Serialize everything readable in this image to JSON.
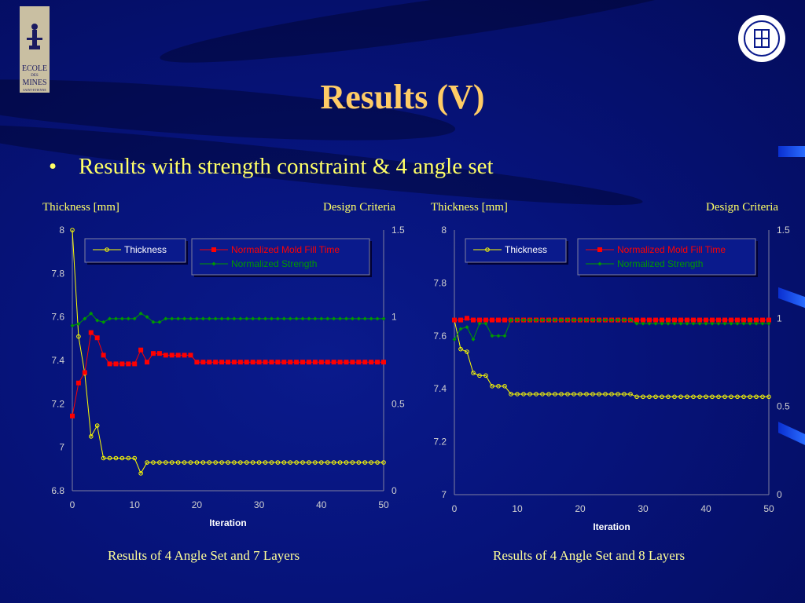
{
  "slide": {
    "title": "Results (V)",
    "bullet": "Results with strength constraint & 4 angle set",
    "logo_left": {
      "line1": "ECOLE",
      "line2": "DES",
      "line3": "MINES",
      "line4": "SAINT-ETIENNE"
    },
    "colors": {
      "title": "#ffcc66",
      "text": "#ffff66",
      "thickness": "#ffff00",
      "mold": "#ff0000",
      "strength": "#009900"
    }
  },
  "chart_data": [
    {
      "type": "line",
      "left_axis_header": "Thickness [mm]",
      "right_axis_header": "Design Criteria",
      "xlabel": "Iteration",
      "caption": "Results of 4 Angle Set and 7 Layers",
      "xlim": [
        0,
        50
      ],
      "ylim": [
        6.8,
        8
      ],
      "y2lim": [
        0,
        1.5
      ],
      "xticks": [
        0,
        10,
        20,
        30,
        40,
        50
      ],
      "yticks": [
        6.8,
        7,
        7.2,
        7.4,
        7.6,
        7.8,
        8
      ],
      "ytick_labels": [
        "6.8",
        "7",
        "7.2",
        "7.4",
        "7.6",
        "7.8",
        "8"
      ],
      "y2ticks": [
        0,
        0.5,
        1,
        1.5
      ],
      "y2tick_labels": [
        "0",
        "0.5",
        "1",
        "1.5"
      ],
      "legend": {
        "thickness": "Thickness",
        "mold": "Normalized Mold Fill Time",
        "strength": "Normalized Strength"
      },
      "series": [
        {
          "name": "Thickness",
          "axis": "left",
          "x": [
            0,
            1,
            2,
            3,
            4,
            5,
            6,
            7,
            8,
            9,
            10,
            11,
            12,
            13,
            14,
            15,
            16,
            17,
            18,
            19,
            20,
            21,
            22,
            23,
            24,
            25,
            26,
            27,
            28,
            29,
            30,
            31,
            32,
            33,
            34,
            35,
            36,
            37,
            38,
            39,
            40,
            41,
            42,
            43,
            44,
            45,
            46,
            47,
            48,
            49,
            50
          ],
          "values": [
            8.0,
            7.51,
            7.34,
            7.05,
            7.1,
            6.95,
            6.95,
            6.95,
            6.95,
            6.95,
            6.95,
            6.88,
            6.93,
            6.93,
            6.93,
            6.93,
            6.93,
            6.93,
            6.93,
            6.93,
            6.93,
            6.93,
            6.93,
            6.93,
            6.93,
            6.93,
            6.93,
            6.93,
            6.93,
            6.93,
            6.93,
            6.93,
            6.93,
            6.93,
            6.93,
            6.93,
            6.93,
            6.93,
            6.93,
            6.93,
            6.93,
            6.93,
            6.93,
            6.93,
            6.93,
            6.93,
            6.93,
            6.93,
            6.93,
            6.93,
            6.93
          ]
        },
        {
          "name": "Normalized Mold Fill Time",
          "axis": "right",
          "x": [
            0,
            1,
            2,
            3,
            4,
            5,
            6,
            7,
            8,
            9,
            10,
            11,
            12,
            13,
            14,
            15,
            16,
            17,
            18,
            19,
            20,
            21,
            22,
            23,
            24,
            25,
            26,
            27,
            28,
            29,
            30,
            31,
            32,
            33,
            34,
            35,
            36,
            37,
            38,
            39,
            40,
            41,
            42,
            43,
            44,
            45,
            46,
            47,
            48,
            49,
            50
          ],
          "values": [
            0.43,
            0.62,
            0.68,
            0.91,
            0.88,
            0.78,
            0.73,
            0.73,
            0.73,
            0.73,
            0.73,
            0.81,
            0.74,
            0.79,
            0.79,
            0.78,
            0.78,
            0.78,
            0.78,
            0.78,
            0.74,
            0.74,
            0.74,
            0.74,
            0.74,
            0.74,
            0.74,
            0.74,
            0.74,
            0.74,
            0.74,
            0.74,
            0.74,
            0.74,
            0.74,
            0.74,
            0.74,
            0.74,
            0.74,
            0.74,
            0.74,
            0.74,
            0.74,
            0.74,
            0.74,
            0.74,
            0.74,
            0.74,
            0.74,
            0.74,
            0.74
          ]
        },
        {
          "name": "Normalized Strength",
          "axis": "right",
          "x": [
            0,
            1,
            2,
            3,
            4,
            5,
            6,
            7,
            8,
            9,
            10,
            11,
            12,
            13,
            14,
            15,
            16,
            17,
            18,
            19,
            20,
            21,
            22,
            23,
            24,
            25,
            26,
            27,
            28,
            29,
            30,
            31,
            32,
            33,
            34,
            35,
            36,
            37,
            38,
            39,
            40,
            41,
            42,
            43,
            44,
            45,
            46,
            47,
            48,
            49,
            50
          ],
          "values": [
            0.95,
            0.96,
            0.99,
            1.02,
            0.98,
            0.97,
            0.99,
            0.99,
            0.99,
            0.99,
            0.99,
            1.02,
            1.0,
            0.97,
            0.97,
            0.99,
            0.99,
            0.99,
            0.99,
            0.99,
            0.99,
            0.99,
            0.99,
            0.99,
            0.99,
            0.99,
            0.99,
            0.99,
            0.99,
            0.99,
            0.99,
            0.99,
            0.99,
            0.99,
            0.99,
            0.99,
            0.99,
            0.99,
            0.99,
            0.99,
            0.99,
            0.99,
            0.99,
            0.99,
            0.99,
            0.99,
            0.99,
            0.99,
            0.99,
            0.99,
            0.99
          ]
        }
      ]
    },
    {
      "type": "line",
      "left_axis_header": "Thickness [mm]",
      "right_axis_header": "Design Criteria",
      "xlabel": "Iteration",
      "caption": "Results of 4 Angle Set and 8 Layers",
      "xlim": [
        0,
        50
      ],
      "ylim": [
        7,
        8
      ],
      "y2lim": [
        0,
        1.5
      ],
      "xticks": [
        0,
        10,
        20,
        30,
        40,
        50
      ],
      "yticks": [
        7,
        7.2,
        7.4,
        7.6,
        7.8,
        8
      ],
      "ytick_labels": [
        "7",
        "7.2",
        "7.4",
        "7.6",
        "7.8",
        "8"
      ],
      "y2ticks": [
        0,
        0.5,
        1,
        1.5
      ],
      "y2tick_labels": [
        "0",
        "0.5",
        "1",
        "1.5"
      ],
      "legend": {
        "thickness": "Thickness",
        "mold": "Normalized Mold Fill Time",
        "strength": "Normalized Strength"
      },
      "series": [
        {
          "name": "Thickness",
          "axis": "left",
          "x": [
            0,
            1,
            2,
            3,
            4,
            5,
            6,
            7,
            8,
            9,
            10,
            11,
            12,
            13,
            14,
            15,
            16,
            17,
            18,
            19,
            20,
            21,
            22,
            23,
            24,
            25,
            26,
            27,
            28,
            29,
            30,
            31,
            32,
            33,
            34,
            35,
            36,
            37,
            38,
            39,
            40,
            41,
            42,
            43,
            44,
            45,
            46,
            47,
            48,
            49,
            50
          ],
          "values": [
            7.66,
            7.55,
            7.54,
            7.46,
            7.45,
            7.45,
            7.41,
            7.41,
            7.41,
            7.38,
            7.38,
            7.38,
            7.38,
            7.38,
            7.38,
            7.38,
            7.38,
            7.38,
            7.38,
            7.38,
            7.38,
            7.38,
            7.38,
            7.38,
            7.38,
            7.38,
            7.38,
            7.38,
            7.38,
            7.37,
            7.37,
            7.37,
            7.37,
            7.37,
            7.37,
            7.37,
            7.37,
            7.37,
            7.37,
            7.37,
            7.37,
            7.37,
            7.37,
            7.37,
            7.37,
            7.37,
            7.37,
            7.37,
            7.37,
            7.37,
            7.37
          ]
        },
        {
          "name": "Normalized Mold Fill Time",
          "axis": "right",
          "x": [
            0,
            1,
            2,
            3,
            4,
            5,
            6,
            7,
            8,
            9,
            10,
            11,
            12,
            13,
            14,
            15,
            16,
            17,
            18,
            19,
            20,
            21,
            22,
            23,
            24,
            25,
            26,
            27,
            28,
            29,
            30,
            31,
            32,
            33,
            34,
            35,
            36,
            37,
            38,
            39,
            40,
            41,
            42,
            43,
            44,
            45,
            46,
            47,
            48,
            49,
            50
          ],
          "values": [
            0.99,
            0.99,
            1.0,
            0.99,
            0.99,
            0.99,
            0.99,
            0.99,
            0.99,
            0.99,
            0.99,
            0.99,
            0.99,
            0.99,
            0.99,
            0.99,
            0.99,
            0.99,
            0.99,
            0.99,
            0.99,
            0.99,
            0.99,
            0.99,
            0.99,
            0.99,
            0.99,
            0.99,
            0.99,
            0.99,
            0.99,
            0.99,
            0.99,
            0.99,
            0.99,
            0.99,
            0.99,
            0.99,
            0.99,
            0.99,
            0.99,
            0.99,
            0.99,
            0.99,
            0.99,
            0.99,
            0.99,
            0.99,
            0.99,
            0.99,
            0.99
          ]
        },
        {
          "name": "Normalized Strength",
          "axis": "right",
          "x": [
            0,
            1,
            2,
            3,
            4,
            5,
            6,
            7,
            8,
            9,
            10,
            11,
            12,
            13,
            14,
            15,
            16,
            17,
            18,
            19,
            20,
            21,
            22,
            23,
            24,
            25,
            26,
            27,
            28,
            29,
            30,
            31,
            32,
            33,
            34,
            35,
            36,
            37,
            38,
            39,
            40,
            41,
            42,
            43,
            44,
            45,
            46,
            47,
            48,
            49,
            50
          ],
          "values": [
            0.88,
            0.94,
            0.95,
            0.88,
            0.97,
            0.97,
            0.9,
            0.9,
            0.9,
            0.99,
            0.99,
            0.99,
            0.99,
            0.99,
            0.99,
            0.99,
            0.99,
            0.99,
            0.99,
            0.99,
            0.99,
            0.99,
            0.99,
            0.99,
            0.99,
            0.99,
            0.99,
            0.99,
            0.99,
            0.97,
            0.97,
            0.97,
            0.97,
            0.97,
            0.97,
            0.97,
            0.97,
            0.97,
            0.97,
            0.97,
            0.97,
            0.97,
            0.97,
            0.97,
            0.97,
            0.97,
            0.97,
            0.97,
            0.97,
            0.97,
            0.97
          ]
        }
      ]
    }
  ]
}
